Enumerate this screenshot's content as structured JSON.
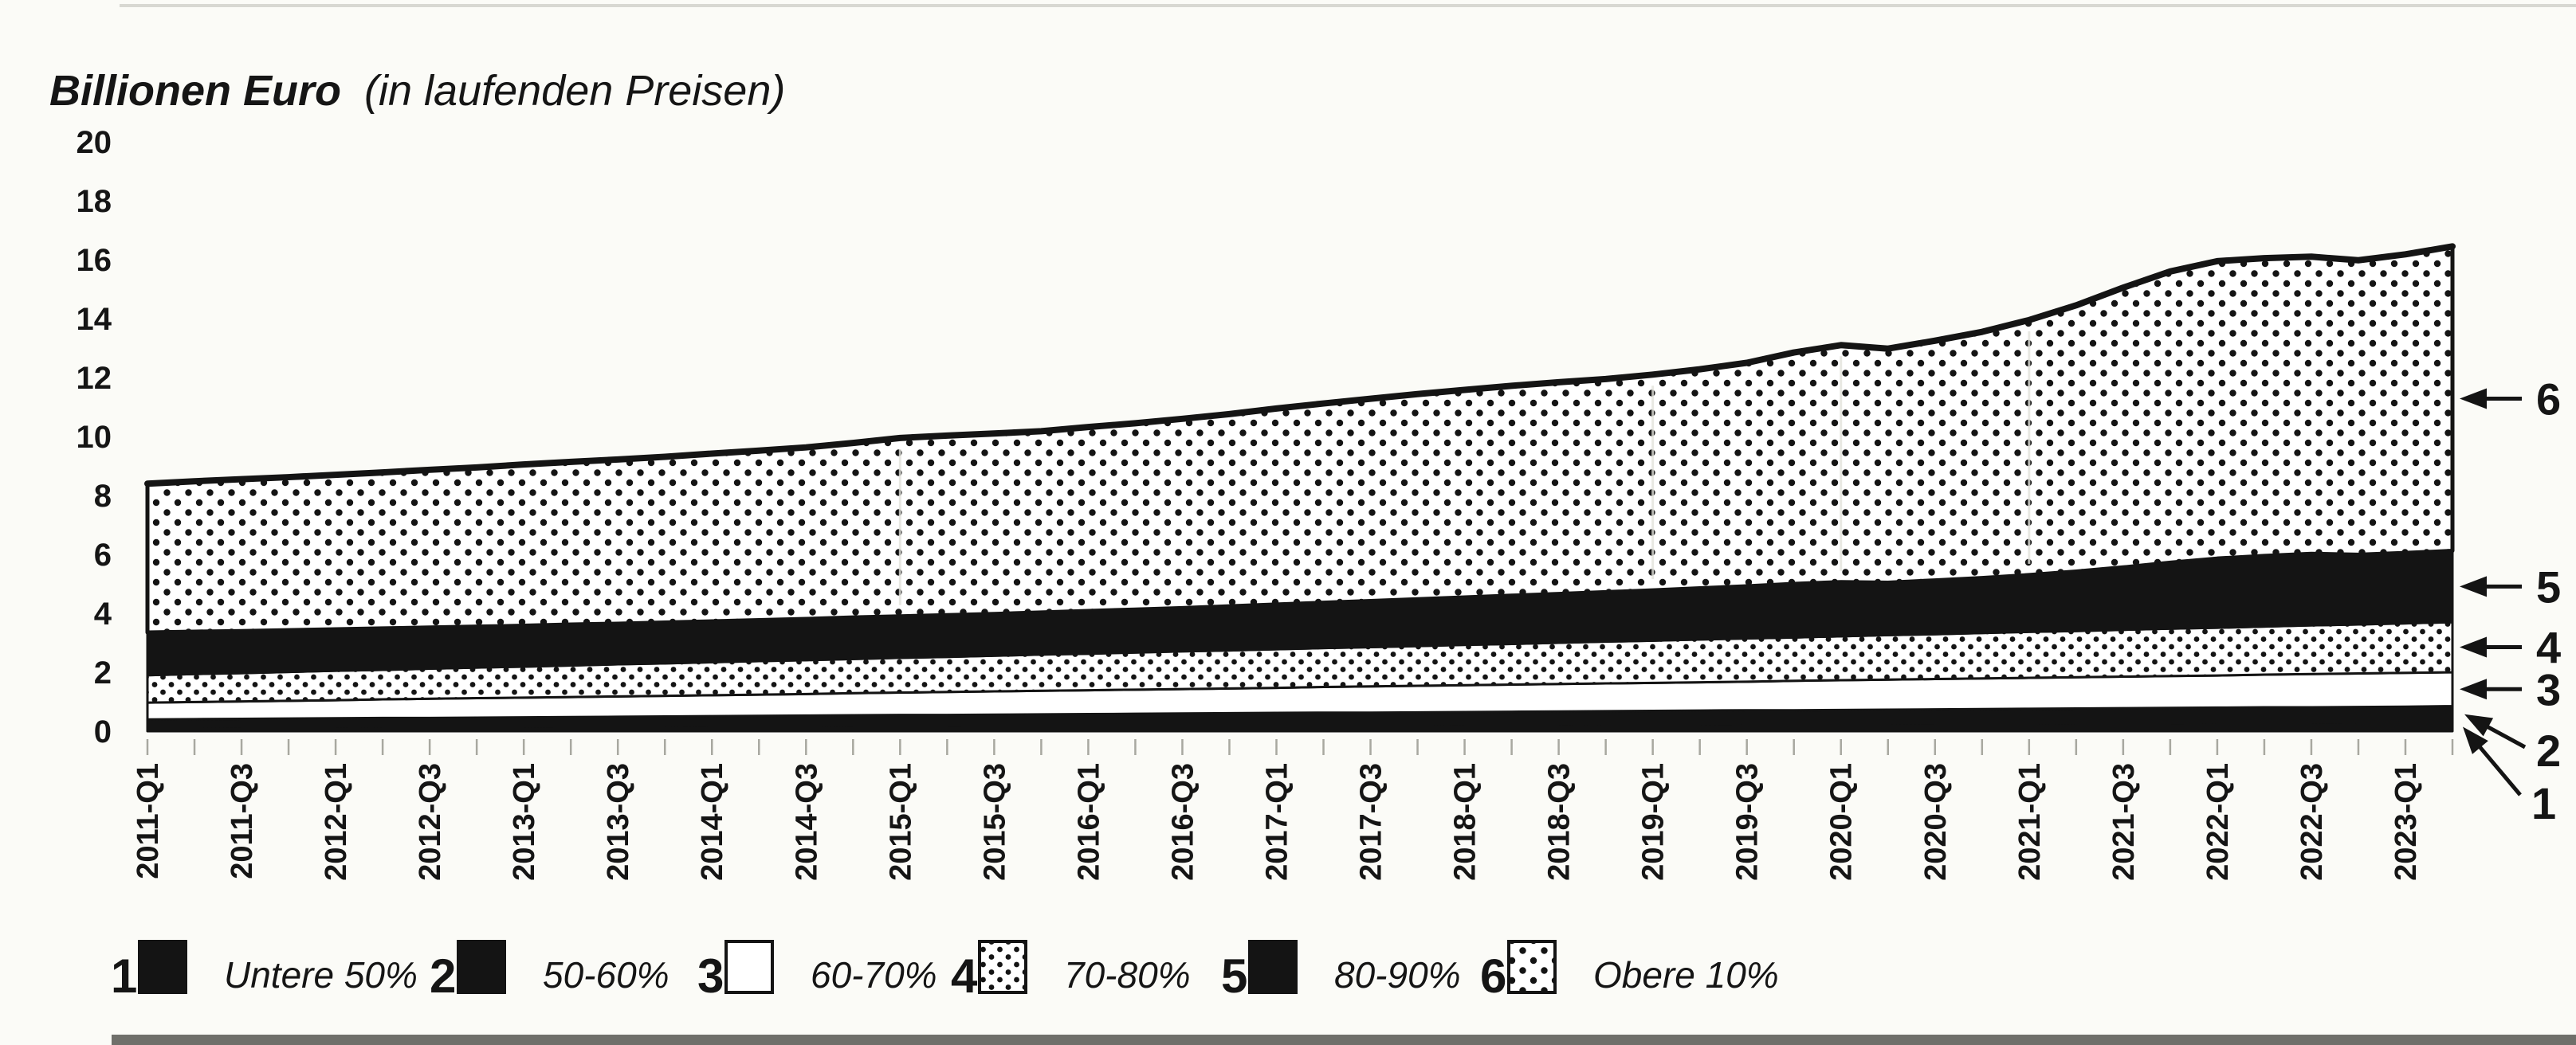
{
  "title": {
    "bold": "Billionen Euro",
    "rest": "(in laufenden Preisen)"
  },
  "colors": {
    "ink": "#141414",
    "paper": "#fbfbf7",
    "pattern_bg": "#ffffff",
    "tick": "#a8a8a0",
    "seam": "#e3e3dc",
    "scan_strip": "#6f6f6a",
    "scan_hairline": "#cfcfc8"
  },
  "chart_data": {
    "type": "area",
    "stacked": true,
    "title": "Billionen Euro (in laufenden Preisen)",
    "unit": "Billionen Euro",
    "xlabel": "",
    "ylabel": "Billionen Euro (in laufenden Preisen)",
    "ylim": [
      0,
      20
    ],
    "y_ticks": [
      0,
      2,
      4,
      6,
      8,
      10,
      12,
      14,
      16,
      18,
      20
    ],
    "grid": false,
    "legend_position": "bottom",
    "values_note": "cumulative_top = obere Grenze des gestapelten Bandes in Billionen Euro, je Quartal",
    "x_quarters": [
      "2011-Q1",
      "2011-Q2",
      "2011-Q3",
      "2011-Q4",
      "2012-Q1",
      "2012-Q2",
      "2012-Q3",
      "2012-Q4",
      "2013-Q1",
      "2013-Q2",
      "2013-Q3",
      "2013-Q4",
      "2014-Q1",
      "2014-Q2",
      "2014-Q3",
      "2014-Q4",
      "2015-Q1",
      "2015-Q2",
      "2015-Q3",
      "2015-Q4",
      "2016-Q1",
      "2016-Q2",
      "2016-Q3",
      "2016-Q4",
      "2017-Q1",
      "2017-Q2",
      "2017-Q3",
      "2017-Q4",
      "2018-Q1",
      "2018-Q2",
      "2018-Q3",
      "2018-Q4",
      "2019-Q1",
      "2019-Q2",
      "2019-Q3",
      "2019-Q4",
      "2020-Q1",
      "2020-Q2",
      "2020-Q3",
      "2020-Q4",
      "2021-Q1",
      "2021-Q2",
      "2021-Q3",
      "2021-Q4",
      "2022-Q1",
      "2022-Q2",
      "2022-Q3",
      "2022-Q4",
      "2023-Q1",
      "2023-Q2"
    ],
    "x_tick_labels": [
      "2011-Q1",
      "2011-Q3",
      "2012-Q1",
      "2012-Q3",
      "2013-Q1",
      "2013-Q3",
      "2014-Q1",
      "2014-Q3",
      "2015-Q1",
      "2015-Q3",
      "2016-Q1",
      "2016-Q3",
      "2017-Q1",
      "2017-Q3",
      "2018-Q1",
      "2018-Q3",
      "2019-Q1",
      "2019-Q3",
      "2020-Q1",
      "2020-Q3",
      "2021-Q1",
      "2021-Q3",
      "2022-Q1",
      "2022-Q3",
      "2023-Q1"
    ],
    "series": [
      {
        "num": "1",
        "name": "Untere 50%",
        "fill": "black",
        "cumulative_top": [
          0.15,
          0.15,
          0.16,
          0.16,
          0.16,
          0.17,
          0.17,
          0.17,
          0.17,
          0.18,
          0.18,
          0.18,
          0.19,
          0.19,
          0.19,
          0.2,
          0.2,
          0.2,
          0.21,
          0.21,
          0.21,
          0.22,
          0.22,
          0.22,
          0.22,
          0.23,
          0.23,
          0.23,
          0.24,
          0.24,
          0.24,
          0.25,
          0.25,
          0.25,
          0.26,
          0.26,
          0.26,
          0.26,
          0.27,
          0.27,
          0.27,
          0.28,
          0.28,
          0.28,
          0.29,
          0.29,
          0.29,
          0.3,
          0.3,
          0.3
        ]
      },
      {
        "num": "2",
        "name": "50-60%",
        "fill": "black",
        "cumulative_top": [
          0.4,
          0.41,
          0.42,
          0.43,
          0.44,
          0.45,
          0.45,
          0.46,
          0.47,
          0.48,
          0.49,
          0.5,
          0.51,
          0.52,
          0.53,
          0.54,
          0.55,
          0.55,
          0.56,
          0.57,
          0.58,
          0.59,
          0.6,
          0.61,
          0.62,
          0.63,
          0.63,
          0.64,
          0.65,
          0.66,
          0.67,
          0.68,
          0.69,
          0.7,
          0.71,
          0.71,
          0.72,
          0.73,
          0.74,
          0.75,
          0.76,
          0.77,
          0.78,
          0.79,
          0.8,
          0.81,
          0.81,
          0.82,
          0.83,
          0.85
        ]
      },
      {
        "num": "3",
        "name": "60-70%",
        "fill": "white",
        "cumulative_top": [
          0.97,
          0.99,
          1.01,
          1.03,
          1.05,
          1.08,
          1.1,
          1.12,
          1.14,
          1.16,
          1.18,
          1.2,
          1.22,
          1.24,
          1.26,
          1.29,
          1.31,
          1.33,
          1.35,
          1.37,
          1.39,
          1.41,
          1.43,
          1.45,
          1.47,
          1.5,
          1.52,
          1.54,
          1.56,
          1.58,
          1.6,
          1.62,
          1.64,
          1.66,
          1.68,
          1.71,
          1.73,
          1.75,
          1.77,
          1.79,
          1.81,
          1.83,
          1.85,
          1.87,
          1.89,
          1.92,
          1.94,
          1.96,
          1.98,
          2.0
        ]
      },
      {
        "num": "4",
        "name": "70-80%",
        "fill": "dots-small",
        "cumulative_top": [
          1.9,
          1.94,
          1.97,
          2.01,
          2.05,
          2.08,
          2.12,
          2.16,
          2.19,
          2.23,
          2.27,
          2.3,
          2.34,
          2.38,
          2.41,
          2.45,
          2.49,
          2.52,
          2.56,
          2.6,
          2.63,
          2.67,
          2.71,
          2.74,
          2.78,
          2.82,
          2.85,
          2.89,
          2.93,
          2.96,
          3.0,
          3.04,
          3.07,
          3.11,
          3.15,
          3.18,
          3.22,
          3.26,
          3.29,
          3.33,
          3.37,
          3.4,
          3.44,
          3.48,
          3.51,
          3.55,
          3.59,
          3.62,
          3.66,
          3.7
        ]
      },
      {
        "num": "5",
        "name": "80-90%",
        "fill": "black",
        "cumulative_top": [
          3.35,
          3.38,
          3.4,
          3.43,
          3.46,
          3.49,
          3.52,
          3.55,
          3.58,
          3.62,
          3.65,
          3.69,
          3.73,
          3.77,
          3.81,
          3.86,
          3.9,
          3.94,
          3.98,
          4.03,
          4.08,
          4.13,
          4.18,
          4.24,
          4.3,
          4.36,
          4.42,
          4.48,
          4.54,
          4.6,
          4.66,
          4.72,
          4.78,
          4.85,
          4.92,
          5.0,
          5.06,
          5.04,
          5.12,
          5.2,
          5.3,
          5.42,
          5.56,
          5.72,
          5.86,
          5.95,
          6.02,
          5.99,
          6.05,
          6.12
        ]
      },
      {
        "num": "6",
        "name": "Obere 10%",
        "fill": "dots-big",
        "cumulative_top": [
          8.4,
          8.48,
          8.55,
          8.62,
          8.7,
          8.78,
          8.87,
          8.95,
          9.05,
          9.14,
          9.22,
          9.31,
          9.42,
          9.52,
          9.63,
          9.78,
          9.95,
          10.03,
          10.1,
          10.18,
          10.32,
          10.45,
          10.6,
          10.76,
          10.95,
          11.12,
          11.28,
          11.44,
          11.58,
          11.72,
          11.84,
          11.95,
          12.1,
          12.28,
          12.5,
          12.85,
          13.1,
          12.98,
          13.25,
          13.55,
          13.95,
          14.45,
          15.05,
          15.6,
          15.95,
          16.05,
          16.1,
          15.98,
          16.18,
          16.45
        ]
      }
    ]
  },
  "band_arrows": [
    "6",
    "5",
    "4",
    "3",
    "2",
    "1"
  ],
  "legend": {
    "items": [
      {
        "num": "1",
        "label": "Untere 50%",
        "fill": "black"
      },
      {
        "num": "2",
        "label": "50-60%",
        "fill": "black"
      },
      {
        "num": "3",
        "label": "60-70%",
        "fill": "white"
      },
      {
        "num": "4",
        "label": "70-80%",
        "fill": "dots-small"
      },
      {
        "num": "5",
        "label": "80-90%",
        "fill": "black"
      },
      {
        "num": "6",
        "label": "Obere 10%",
        "fill": "dots-big"
      }
    ]
  }
}
